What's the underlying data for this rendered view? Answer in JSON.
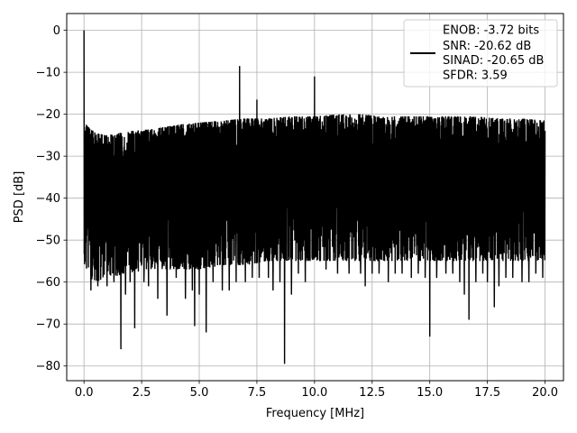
{
  "chart_data": {
    "type": "line",
    "xlabel": "Frequency [MHz]",
    "ylabel": "PSD [dB]",
    "xlim": [
      -0.75,
      20.8
    ],
    "ylim": [
      -83.5,
      4
    ],
    "grid": true,
    "legend_position": "top-right",
    "x_ticks": [
      0.0,
      2.5,
      5.0,
      7.5,
      10.0,
      12.5,
      15.0,
      17.5,
      20.0
    ],
    "x_tick_labels": [
      "0.0",
      "2.5",
      "5.0",
      "7.5",
      "10.0",
      "12.5",
      "15.0",
      "17.5",
      "20.0"
    ],
    "y_ticks": [
      0,
      -10,
      -20,
      -30,
      -40,
      -50,
      -60,
      -70,
      -80
    ],
    "y_tick_labels": [
      "0",
      "−10",
      "−20",
      "−30",
      "−40",
      "−50",
      "−60",
      "−70",
      "−80"
    ],
    "legend_entries": [
      "ENOB: -3.72 bits",
      "SNR: -20.62 dB",
      "SINAD: -20.65 dB",
      "SFDR: 3.59"
    ],
    "series": [
      {
        "color": "#000000",
        "upper_envelope": [
          [
            0.0,
            -22
          ],
          [
            0.5,
            -24.5
          ],
          [
            1.0,
            -25
          ],
          [
            2.0,
            -24
          ],
          [
            3.0,
            -23.5
          ],
          [
            4.0,
            -22.5
          ],
          [
            5.0,
            -22
          ],
          [
            6.0,
            -21.5
          ],
          [
            7.0,
            -21
          ],
          [
            8.0,
            -21
          ],
          [
            9.0,
            -20.5
          ],
          [
            10.0,
            -20.5
          ],
          [
            11.0,
            -20
          ],
          [
            12.0,
            -20
          ],
          [
            13.0,
            -20.5
          ],
          [
            14.0,
            -20.5
          ],
          [
            15.0,
            -20.5
          ],
          [
            16.0,
            -20.5
          ],
          [
            17.0,
            -20.5
          ],
          [
            18.0,
            -21
          ],
          [
            19.0,
            -21
          ],
          [
            20.0,
            -21.5
          ]
        ],
        "lower_envelope": [
          [
            0.0,
            -58
          ],
          [
            0.5,
            -60
          ],
          [
            1.0,
            -59
          ],
          [
            2.0,
            -58
          ],
          [
            3.0,
            -57
          ],
          [
            4.0,
            -57
          ],
          [
            5.0,
            -57
          ],
          [
            6.0,
            -56
          ],
          [
            7.0,
            -56
          ],
          [
            8.0,
            -55
          ],
          [
            9.0,
            -55
          ],
          [
            10.0,
            -55
          ],
          [
            11.0,
            -55
          ],
          [
            12.0,
            -55
          ],
          [
            13.0,
            -55
          ],
          [
            14.0,
            -55
          ],
          [
            15.0,
            -55
          ],
          [
            16.0,
            -55
          ],
          [
            17.0,
            -55
          ],
          [
            18.0,
            -55
          ],
          [
            19.0,
            -55
          ],
          [
            20.0,
            -55
          ]
        ],
        "peaks": [
          {
            "x": 0.0,
            "y": 0
          },
          {
            "x": 6.75,
            "y": -8.5
          },
          {
            "x": 7.5,
            "y": -16.5
          },
          {
            "x": 10.0,
            "y": -11
          }
        ],
        "dips": [
          {
            "x": 0.3,
            "y": -62
          },
          {
            "x": 0.6,
            "y": -61
          },
          {
            "x": 1.0,
            "y": -61
          },
          {
            "x": 1.3,
            "y": -60
          },
          {
            "x": 1.6,
            "y": -76
          },
          {
            "x": 1.8,
            "y": -63
          },
          {
            "x": 2.0,
            "y": -60
          },
          {
            "x": 2.2,
            "y": -71
          },
          {
            "x": 2.6,
            "y": -60
          },
          {
            "x": 2.8,
            "y": -61
          },
          {
            "x": 3.2,
            "y": -64
          },
          {
            "x": 3.6,
            "y": -68
          },
          {
            "x": 4.0,
            "y": -59
          },
          {
            "x": 4.4,
            "y": -64
          },
          {
            "x": 4.7,
            "y": -62
          },
          {
            "x": 4.8,
            "y": -70.5
          },
          {
            "x": 5.0,
            "y": -63
          },
          {
            "x": 5.3,
            "y": -72
          },
          {
            "x": 5.6,
            "y": -60
          },
          {
            "x": 6.0,
            "y": -62
          },
          {
            "x": 6.3,
            "y": -62
          },
          {
            "x": 6.6,
            "y": -60
          },
          {
            "x": 7.0,
            "y": -60
          },
          {
            "x": 7.3,
            "y": -59
          },
          {
            "x": 7.6,
            "y": -59
          },
          {
            "x": 8.0,
            "y": -59
          },
          {
            "x": 8.2,
            "y": -62
          },
          {
            "x": 8.5,
            "y": -60
          },
          {
            "x": 8.7,
            "y": -79.5
          },
          {
            "x": 9.0,
            "y": -63
          },
          {
            "x": 9.3,
            "y": -58
          },
          {
            "x": 9.6,
            "y": -60
          },
          {
            "x": 10.0,
            "y": -59
          },
          {
            "x": 10.5,
            "y": -57
          },
          {
            "x": 11.0,
            "y": -58
          },
          {
            "x": 11.5,
            "y": -58
          },
          {
            "x": 12.0,
            "y": -58
          },
          {
            "x": 12.2,
            "y": -61
          },
          {
            "x": 12.5,
            "y": -58
          },
          {
            "x": 12.8,
            "y": -58
          },
          {
            "x": 13.2,
            "y": -60
          },
          {
            "x": 13.5,
            "y": -58
          },
          {
            "x": 13.8,
            "y": -58
          },
          {
            "x": 14.2,
            "y": -59
          },
          {
            "x": 14.5,
            "y": -58
          },
          {
            "x": 14.8,
            "y": -59
          },
          {
            "x": 15.0,
            "y": -73
          },
          {
            "x": 15.3,
            "y": -59
          },
          {
            "x": 15.7,
            "y": -58
          },
          {
            "x": 16.0,
            "y": -58
          },
          {
            "x": 16.3,
            "y": -60
          },
          {
            "x": 16.5,
            "y": -63
          },
          {
            "x": 16.7,
            "y": -69
          },
          {
            "x": 17.0,
            "y": -60
          },
          {
            "x": 17.3,
            "y": -58
          },
          {
            "x": 17.5,
            "y": -60
          },
          {
            "x": 17.8,
            "y": -66
          },
          {
            "x": 18.0,
            "y": -61
          },
          {
            "x": 18.3,
            "y": -59
          },
          {
            "x": 18.6,
            "y": -59
          },
          {
            "x": 19.0,
            "y": -60
          },
          {
            "x": 19.3,
            "y": -60
          },
          {
            "x": 19.6,
            "y": -58
          },
          {
            "x": 19.9,
            "y": -59
          }
        ]
      }
    ]
  }
}
